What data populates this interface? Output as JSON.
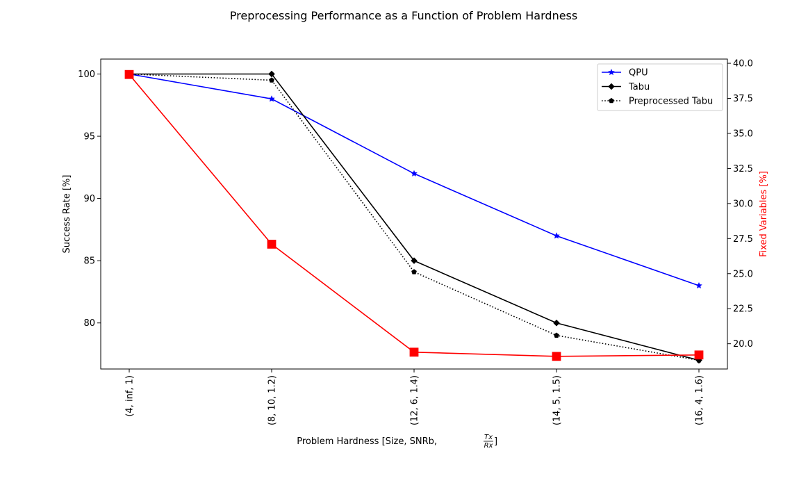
{
  "chart_data": {
    "type": "line",
    "title": "Preprocessing Performance as a Function of Problem Hardness",
    "xlabel_prefix": "Problem Hardness [Size, SNRb, ",
    "xlabel_frac_num": "Tx",
    "xlabel_frac_den": "Rx",
    "xlabel_suffix": "]",
    "ylabel": "Success Rate [%]",
    "y2label": "Fixed Variables [%]",
    "categories": [
      "(4, inf, 1)",
      "(8, 10, 1.2)",
      "(12, 6, 1.4)",
      "(14, 5, 1.5)",
      "(16, 4, 1.6)"
    ],
    "ylim": [
      76.3,
      101.2
    ],
    "yticks": [
      "80",
      "85",
      "90",
      "95",
      "100"
    ],
    "y2lim": [
      18.2,
      40.3
    ],
    "y2ticks": [
      "20.0",
      "22.5",
      "25.0",
      "27.5",
      "30.0",
      "32.5",
      "35.0",
      "37.5",
      "40.0"
    ],
    "legend_position": "top-right",
    "series": [
      {
        "name": "QPU",
        "axis": "left",
        "color": "#0000ff",
        "marker": "star",
        "dash": "solid",
        "values": [
          100,
          98,
          92,
          87,
          83
        ]
      },
      {
        "name": "Tabu",
        "axis": "left",
        "color": "#000000",
        "marker": "diamond",
        "dash": "solid",
        "values": [
          100,
          100,
          85,
          80,
          77
        ]
      },
      {
        "name": "Preprocessed Tabu",
        "axis": "left",
        "color": "#000000",
        "marker": "pentagon",
        "dash": "dotted",
        "values": [
          100,
          99.5,
          84.1,
          79,
          77
        ]
      },
      {
        "axis": "right",
        "color": "#ff0000",
        "marker": "square",
        "dash": "solid",
        "values": [
          39.2,
          27.1,
          19.4,
          19.1,
          19.2
        ]
      }
    ]
  }
}
